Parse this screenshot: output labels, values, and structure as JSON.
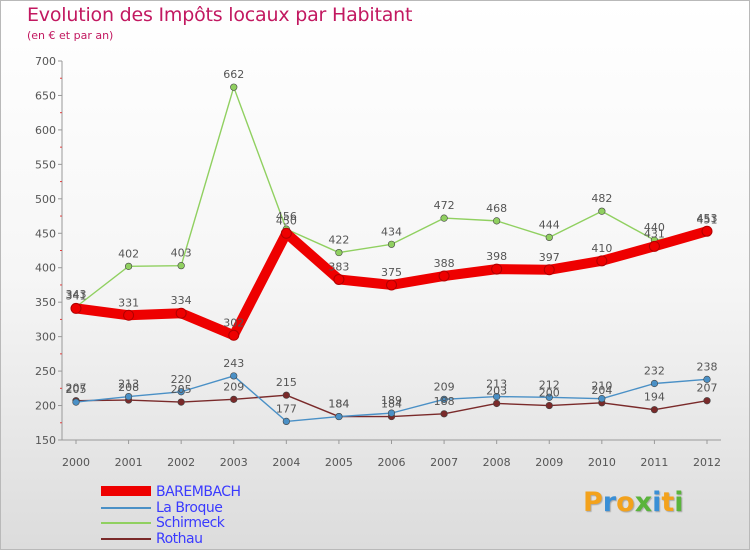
{
  "title": "Evolution des Impôts locaux par Habitant",
  "subtitle": "(en € et par an)",
  "logo": {
    "letters": [
      "P",
      "r",
      "o",
      "x",
      "i",
      "t",
      "i"
    ],
    "colors": [
      "#f3a21c",
      "#3a8fd6",
      "#f3a21c",
      "#5ab43c",
      "#3a8fd6",
      "#f3a21c",
      "#5ab43c"
    ]
  },
  "chart_data": {
    "type": "line",
    "title": "Evolution des Impôts locaux par Habitant",
    "subtitle": "(en € et par an)",
    "xlabel": "",
    "ylabel": "",
    "x": [
      "2000",
      "2001",
      "2002",
      "2003",
      "2004",
      "2005",
      "2006",
      "2007",
      "2008",
      "2009",
      "2010",
      "2011",
      "2012"
    ],
    "ylim": [
      150,
      700
    ],
    "yticks": [
      150,
      200,
      250,
      300,
      350,
      400,
      450,
      500,
      550,
      600,
      650,
      700
    ],
    "grid": false,
    "legend_position": "bottom-left",
    "series": [
      {
        "name": "BAREMBACH",
        "color": "#ee0000",
        "values": [
          341,
          331,
          334,
          302,
          450,
          383,
          375,
          388,
          398,
          397,
          410,
          431,
          453
        ]
      },
      {
        "name": "La Broque",
        "color": "#4a90c6",
        "values": [
          205,
          213,
          220,
          243,
          177,
          184,
          189,
          209,
          213,
          212,
          210,
          232,
          238
        ]
      },
      {
        "name": "Schirmeck",
        "color": "#90d060",
        "values": [
          343,
          402,
          403,
          662,
          456,
          422,
          434,
          472,
          468,
          444,
          482,
          440,
          451
        ]
      },
      {
        "name": "Rothau",
        "color": "#7a2a2a",
        "values": [
          207,
          208,
          205,
          209,
          215,
          184,
          184,
          188,
          203,
          200,
          204,
          194,
          207
        ]
      }
    ]
  }
}
